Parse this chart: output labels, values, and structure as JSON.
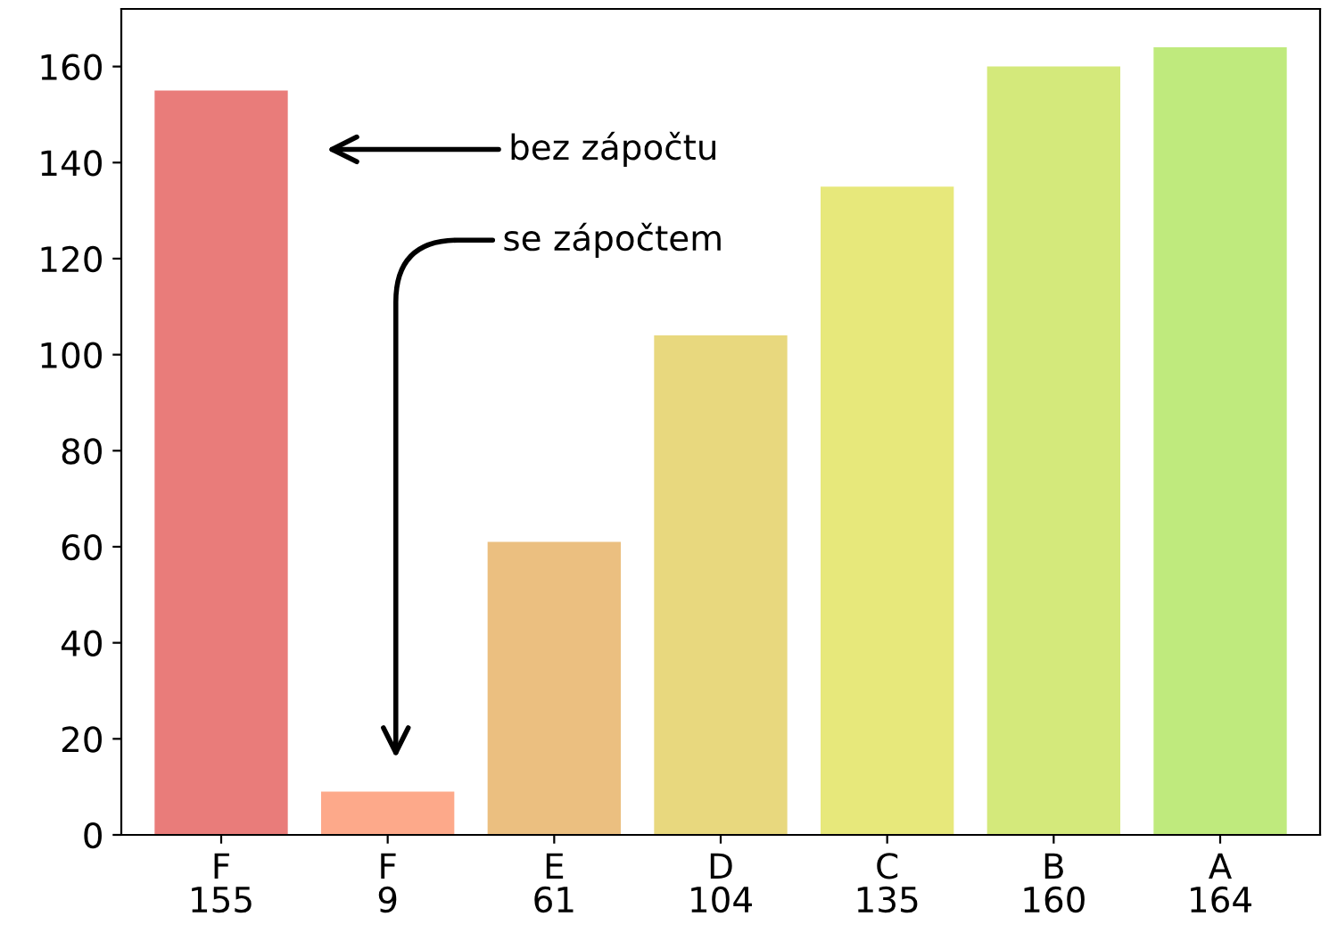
{
  "chart_data": {
    "type": "bar",
    "categories": [
      "F\n155",
      "F\n9",
      "E\n61",
      "D\n104",
      "C\n135",
      "B\n160",
      "A\n164"
    ],
    "values": [
      155,
      9,
      61,
      104,
      135,
      160,
      164
    ],
    "colors": [
      "#e97c7a",
      "#fda98a",
      "#ebbf80",
      "#e8d87e",
      "#e7e87b",
      "#d4e97b",
      "#bfea7d"
    ],
    "ylim": [
      0,
      172
    ],
    "yticks": [
      0,
      20,
      40,
      60,
      80,
      100,
      120,
      140,
      160
    ],
    "annotations": [
      "bez zápočtu",
      "se zápočtem"
    ],
    "grid": false,
    "legend": false
  }
}
